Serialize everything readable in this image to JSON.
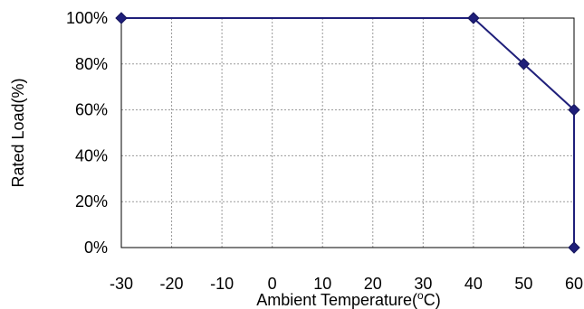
{
  "chart_data": {
    "type": "line",
    "xlabel": "Ambient Temperature(°C)",
    "ylabel": "Rated Load(%)",
    "xlim": [
      -30,
      60
    ],
    "ylim": [
      0,
      100
    ],
    "x_ticks": [
      -30,
      -20,
      -10,
      0,
      10,
      20,
      30,
      40,
      50,
      60
    ],
    "y_ticks": [
      0,
      20,
      40,
      60,
      80,
      100
    ],
    "y_tick_labels": [
      "0%",
      "20%",
      "40%",
      "60%",
      "80%",
      "100%"
    ],
    "grid": true,
    "legend": "none",
    "series": [
      {
        "x": [
          -30,
          40,
          50,
          60,
          60
        ],
        "y": [
          100,
          100,
          80,
          60,
          0
        ],
        "color": "#1f1f7a",
        "marker": "diamond"
      }
    ]
  }
}
